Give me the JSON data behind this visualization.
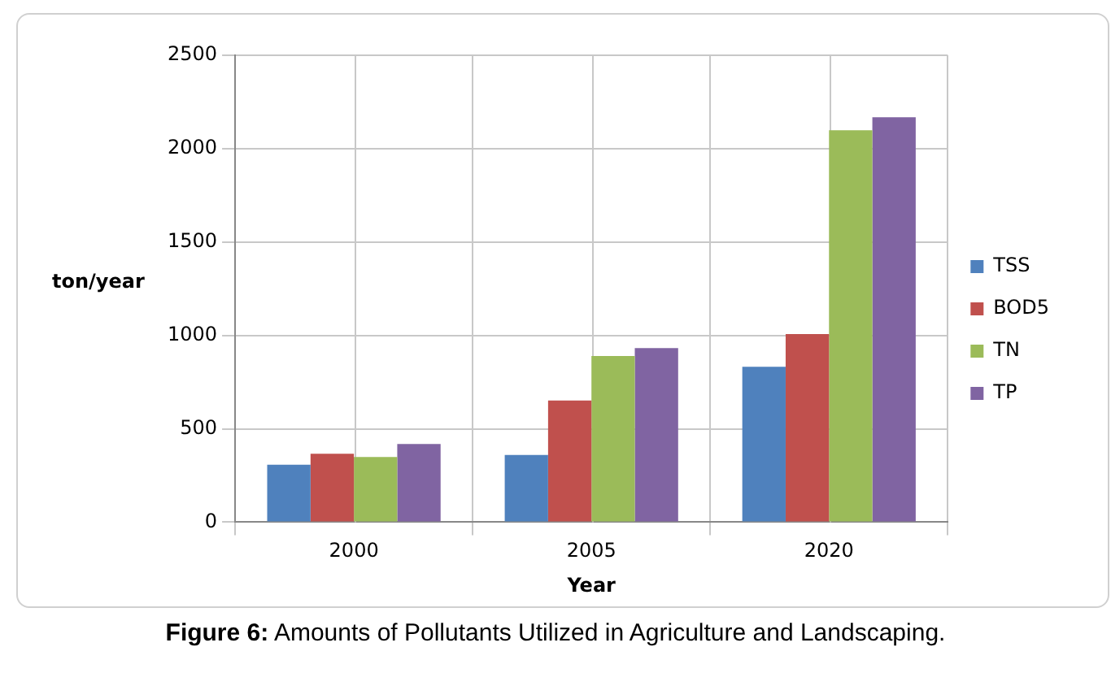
{
  "chart_data": {
    "type": "bar",
    "categories": [
      "2000",
      "2005",
      "2020"
    ],
    "series": [
      {
        "name": "TSS",
        "color": "#4f81bd",
        "values": [
          308,
          360,
          832
        ]
      },
      {
        "name": "BOD5",
        "color": "#c0504d",
        "values": [
          366,
          651,
          1007
        ]
      },
      {
        "name": "TN",
        "color": "#9bbb59",
        "values": [
          349,
          890,
          2099
        ]
      },
      {
        "name": "TP",
        "color": "#8064a2",
        "values": [
          418,
          932,
          2168
        ]
      }
    ],
    "xlabel": "Year",
    "ylabel": "ton/year",
    "ylim": [
      0,
      2500
    ],
    "yticks": [
      0,
      500,
      1000,
      1500,
      2000,
      2500
    ],
    "grid": true,
    "legend": "right",
    "annotations": [
      "Figure 6: Amounts of Pollutants Utilized in Agriculture and Landscaping."
    ]
  }
}
